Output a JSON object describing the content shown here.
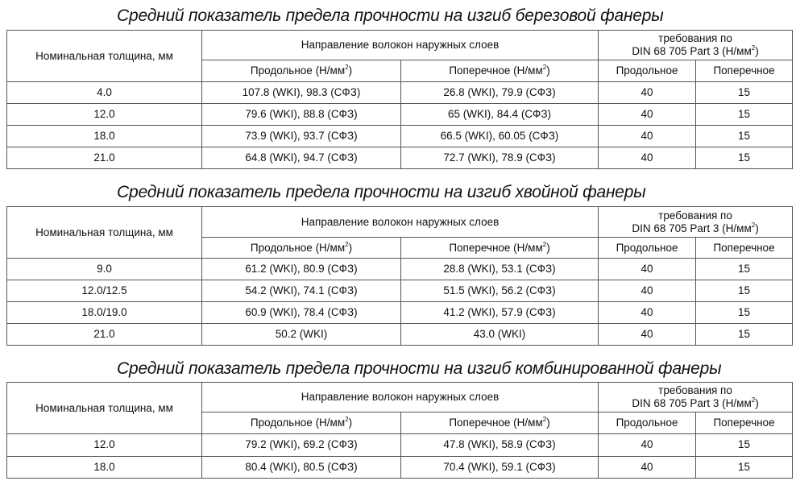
{
  "headers": {
    "thickness": "Номинальная толщина, мм",
    "direction": "Направление волокон наружных слоев",
    "requirements_line1": "требования по",
    "requirements_line2": "DIN 68 705 Part 3 (Н/мм",
    "longitudinal_unit": "Продольное (Н/мм",
    "transverse_unit": "Поперечное (Н/мм",
    "longitudinal": "Продольное",
    "transverse": "Поперечное",
    "sup": "2",
    "close": ")"
  },
  "tables": [
    {
      "title": "Средний показатель предела прочности на изгиб березовой фанеры",
      "rows": [
        [
          "4.0",
          "107.8 (WKI), 98.3 (СФЗ)",
          "26.8 (WKI), 79.9 (СФЗ)",
          "40",
          "15"
        ],
        [
          "12.0",
          "79.6 (WKI), 88.8 (СФЗ)",
          "65 (WKI), 84.4 (СФЗ)",
          "40",
          "15"
        ],
        [
          "18.0",
          "73.9 (WKI), 93.7 (СФЗ)",
          "66.5 (WKI), 60.05 (СФЗ)",
          "40",
          "15"
        ],
        [
          "21.0",
          "64.8 (WKI), 94.7 (СФЗ)",
          "72.7 (WKI), 78.9 (СФЗ)",
          "40",
          "15"
        ]
      ]
    },
    {
      "title": "Средний показатель предела прочности на изгиб хвойной фанеры",
      "rows": [
        [
          "9.0",
          "61.2 (WKI), 80.9 (СФЗ)",
          "28.8 (WKI), 53.1 (СФЗ)",
          "40",
          "15"
        ],
        [
          "12.0/12.5",
          "54.2 (WKI), 74.1 (СФЗ)",
          "51.5 (WKI), 56.2 (СФЗ)",
          "40",
          "15"
        ],
        [
          "18.0/19.0",
          "60.9 (WKI), 78.4 (СФЗ)",
          "41.2 (WKI), 57.9 (СФЗ)",
          "40",
          "15"
        ],
        [
          "21.0",
          "50.2 (WKI)",
          "43.0 (WKI)",
          "40",
          "15"
        ]
      ]
    },
    {
      "title": "Средний показатель предела прочности на изгиб комбинированной фанеры",
      "rows": [
        [
          "12.0",
          "79.2 (WKI), 69.2 (СФЗ)",
          "47.8 (WKI), 58.9 (СФЗ)",
          "40",
          "15"
        ],
        [
          "18.0",
          "80.4 (WKI), 80.5 (СФЗ)",
          "70.4 (WKI), 59.1 (СФЗ)",
          "40",
          "15"
        ]
      ]
    }
  ]
}
